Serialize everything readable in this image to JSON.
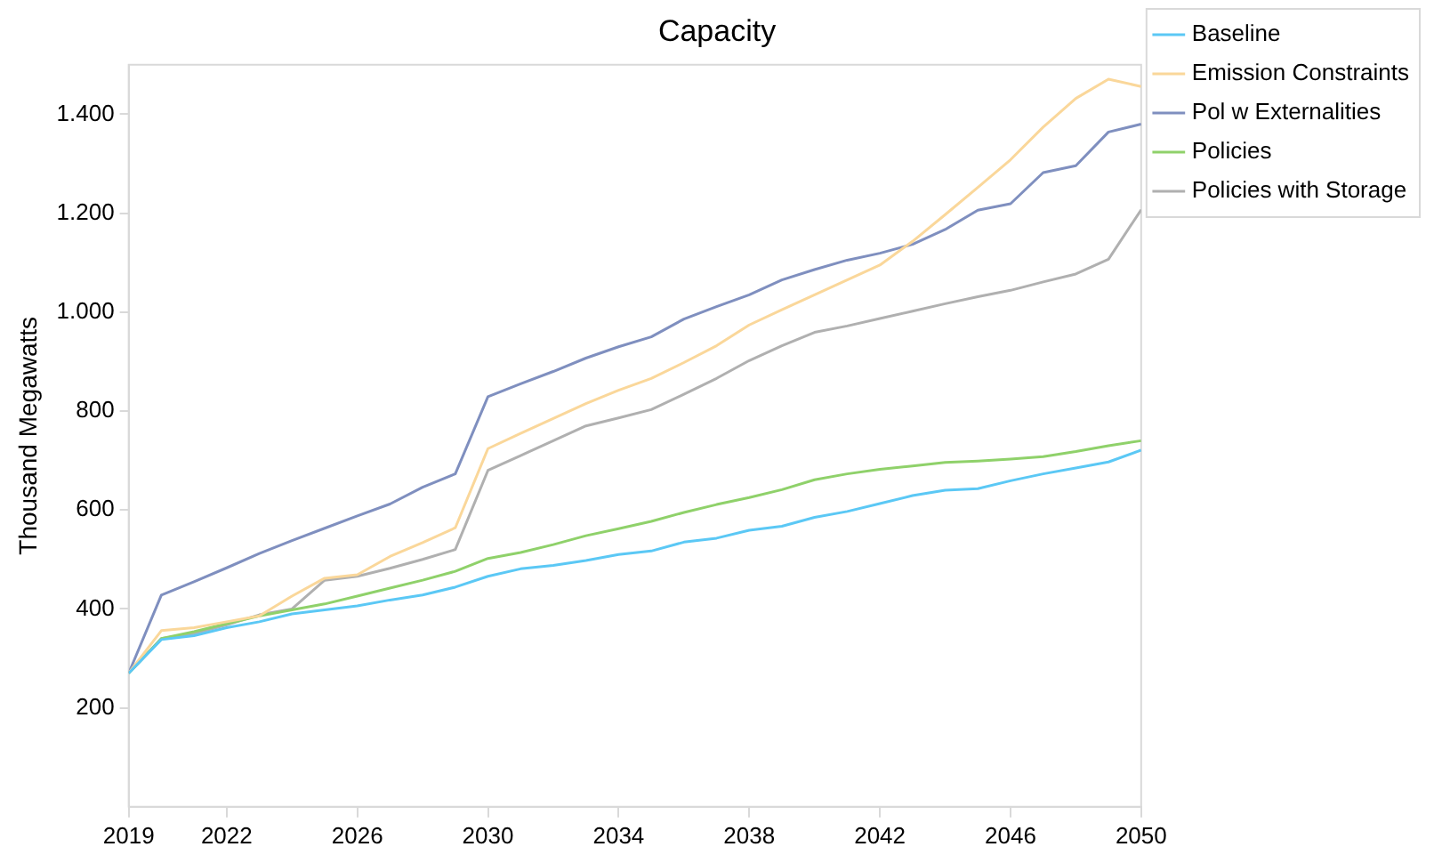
{
  "chart_data": {
    "type": "line",
    "title": "Capacity",
    "ylabel": "Thousand Megawatts",
    "x": [
      2019,
      2020,
      2021,
      2022,
      2023,
      2024,
      2025,
      2026,
      2027,
      2028,
      2029,
      2030,
      2031,
      2032,
      2033,
      2034,
      2035,
      2036,
      2037,
      2038,
      2039,
      2040,
      2041,
      2042,
      2043,
      2044,
      2045,
      2046,
      2047,
      2048,
      2049,
      2050
    ],
    "xlim": [
      2019,
      2050
    ],
    "xticks": [
      2019,
      2022,
      2026,
      2030,
      2034,
      2038,
      2042,
      2046,
      2050
    ],
    "ylim": [
      0,
      1500
    ],
    "yticks": [
      {
        "value": 200,
        "label": "200"
      },
      {
        "value": 400,
        "label": "400"
      },
      {
        "value": 600,
        "label": "600"
      },
      {
        "value": 800,
        "label": "800"
      },
      {
        "value": 1000,
        "label": "1.000"
      },
      {
        "value": 1200,
        "label": "1.200"
      },
      {
        "value": 1400,
        "label": "1.400"
      }
    ],
    "grid": false,
    "legend": "top right",
    "marker": "none",
    "line_style": "solid",
    "series": [
      {
        "name": "Baseline",
        "color": "#5bc8f5",
        "values": [
          270,
          338,
          346,
          362,
          374,
          390,
          398,
          406,
          418,
          428,
          444,
          466,
          481,
          488,
          498,
          510,
          517,
          535,
          543,
          559,
          567,
          585,
          597,
          613,
          629,
          640,
          643,
          659,
          673,
          685,
          697,
          721
        ]
      },
      {
        "name": "Emission Constraints",
        "color": "#fad79a",
        "values": [
          270,
          356,
          362,
          374,
          386,
          426,
          462,
          469,
          506,
          534,
          564,
          724,
          755,
          785,
          815,
          842,
          866,
          898,
          932,
          974,
          1005,
          1035,
          1065,
          1095,
          1143,
          1197,
          1252,
          1308,
          1374,
          1432,
          1471,
          1456
        ]
      },
      {
        "name": "Pol w Externalities",
        "color": "#7f8fbf",
        "values": [
          270,
          428,
          455,
          483,
          512,
          538,
          563,
          588,
          612,
          646,
          673,
          829,
          855,
          880,
          907,
          930,
          950,
          986,
          1011,
          1035,
          1065,
          1086,
          1105,
          1119,
          1137,
          1167,
          1206,
          1219,
          1282,
          1296,
          1364,
          1380
        ]
      },
      {
        "name": "Policies",
        "color": "#8fd16a",
        "values": [
          270,
          340,
          354,
          370,
          386,
          398,
          410,
          426,
          442,
          458,
          476,
          502,
          514,
          530,
          548,
          562,
          577,
          595,
          611,
          625,
          641,
          661,
          673,
          682,
          689,
          696,
          699,
          703,
          708,
          718,
          730,
          740
        ]
      },
      {
        "name": "Policies with Storage",
        "color": "#b0b0b0",
        "values": [
          270,
          340,
          350,
          368,
          388,
          400,
          458,
          466,
          482,
          500,
          520,
          680,
          710,
          740,
          770,
          786,
          803,
          834,
          866,
          902,
          932,
          959,
          972,
          987,
          1002,
          1017,
          1031,
          1044,
          1061,
          1077,
          1107,
          1207
        ]
      }
    ]
  }
}
